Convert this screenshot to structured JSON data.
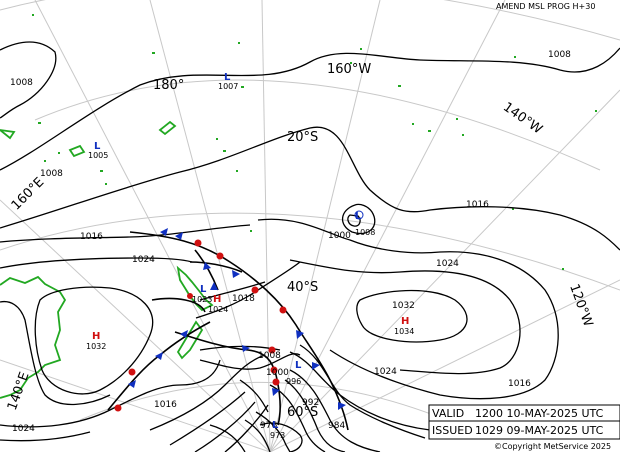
{
  "header": {
    "title": "AMEND MSL PROG H+30"
  },
  "info": {
    "valid_label": "VALID",
    "valid_value": "1200 10-MAY-2025 UTC",
    "issued_label": "ISSUED",
    "issued_value": "1029 09-MAY-2025 UTC"
  },
  "copyright": "©Copyright MetService 2025",
  "graticule_labels": {
    "lon_180": "180°",
    "lon_160w": "160°W",
    "lon_140w": "140°W",
    "lon_120w": "120°W",
    "lon_160e": "160°E",
    "lon_140e": "140°E",
    "lat_20s": "20°S",
    "lat_40s": "40°S",
    "lat_60s": "60°S"
  },
  "pressure_centres": [
    {
      "type": "L",
      "value": "1007"
    },
    {
      "type": "L",
      "value": "1005"
    },
    {
      "type": "L",
      "value": "1008"
    },
    {
      "type": "L",
      "value": "1023"
    },
    {
      "type": "H",
      "value": "1024"
    },
    {
      "type": "H",
      "value": "1032"
    },
    {
      "type": "H",
      "value": "1034"
    },
    {
      "type": "L",
      "value": "996"
    },
    {
      "type": "L",
      "value": "973"
    }
  ],
  "isobar_labels": {
    "i1008_nw": "1008",
    "i1008_ne": "1008",
    "i1008_w": "1008",
    "i1016_w": "1016",
    "i1024_w": "1024",
    "i1000_c": "1000",
    "i1016_e": "1016",
    "i1024_c": "1024",
    "i1032_c": "1032",
    "i1018": "1018",
    "i1024_se": "1024",
    "i1016_se": "1016",
    "i1016_s": "1016",
    "i1024_sw": "1024",
    "i1008_s": "1008",
    "i1000_s": "1000",
    "i992": "992",
    "i984": "984",
    "i976": "976"
  },
  "colors": {
    "isobar": "#000000",
    "land": "#22a822",
    "graticule": "#c8c8c8",
    "high": "#d01010",
    "low": "#1030c0",
    "cold_front": "#1030c0",
    "warm_front": "#d01010"
  }
}
